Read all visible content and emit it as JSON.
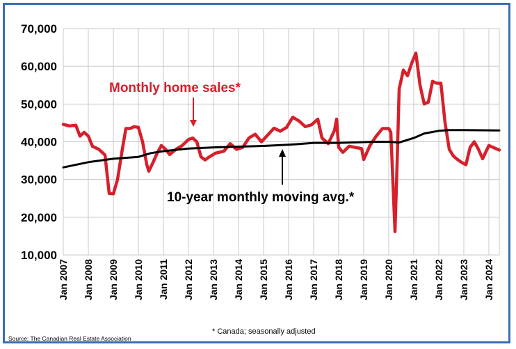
{
  "chart_data": {
    "type": "line",
    "title": "",
    "xlabel": "",
    "ylabel": "",
    "ylim": [
      10000,
      70000
    ],
    "yticks": [
      10000,
      20000,
      30000,
      40000,
      50000,
      60000,
      70000
    ],
    "ytick_labels": [
      "10,000",
      "20,000",
      "30,000",
      "40,000",
      "50,000",
      "60,000",
      "70,000"
    ],
    "xlim": [
      "2007-01",
      "2024-06"
    ],
    "xtick_labels": [
      "Jan 2007",
      "Jan 2008",
      "Jan 2009",
      "Jan 2010",
      "Jan 2011",
      "Jan 2012",
      "Jan 2013",
      "Jan 2014",
      "Jan 2015",
      "Jan 2016",
      "Jan 2017",
      "Jan 2018",
      "Jan 2019",
      "Jan 2020",
      "Jan 2021",
      "Jan 2022",
      "Jan 2023",
      "Jan 2024"
    ],
    "grid": true,
    "series": [
      {
        "name": "Monthly home sales*",
        "color": "#d6202b",
        "points": [
          [
            "2007-01",
            44600
          ],
          [
            "2007-04",
            44200
          ],
          [
            "2007-07",
            44400
          ],
          [
            "2007-09",
            41500
          ],
          [
            "2007-11",
            42500
          ],
          [
            "2008-01",
            41500
          ],
          [
            "2008-03",
            38800
          ],
          [
            "2008-06",
            38000
          ],
          [
            "2008-09",
            36500
          ],
          [
            "2008-11",
            26300
          ],
          [
            "2009-01",
            26200
          ],
          [
            "2009-03",
            30000
          ],
          [
            "2009-05",
            37000
          ],
          [
            "2009-07",
            43500
          ],
          [
            "2009-09",
            43500
          ],
          [
            "2009-11",
            44000
          ],
          [
            "2010-01",
            43800
          ],
          [
            "2010-03",
            40000
          ],
          [
            "2010-05",
            34000
          ],
          [
            "2010-06",
            32200
          ],
          [
            "2010-08",
            34500
          ],
          [
            "2010-10",
            37000
          ],
          [
            "2010-12",
            39000
          ],
          [
            "2011-02",
            38000
          ],
          [
            "2011-04",
            36600
          ],
          [
            "2011-07",
            38000
          ],
          [
            "2011-10",
            39000
          ],
          [
            "2012-01",
            40600
          ],
          [
            "2012-03",
            41000
          ],
          [
            "2012-05",
            40000
          ],
          [
            "2012-07",
            36000
          ],
          [
            "2012-09",
            35200
          ],
          [
            "2012-11",
            36000
          ],
          [
            "2013-02",
            37000
          ],
          [
            "2013-06",
            37500
          ],
          [
            "2013-09",
            39500
          ],
          [
            "2013-12",
            38000
          ],
          [
            "2014-03",
            38500
          ],
          [
            "2014-06",
            41000
          ],
          [
            "2014-09",
            42000
          ],
          [
            "2014-12",
            40000
          ],
          [
            "2015-03",
            41800
          ],
          [
            "2015-06",
            43600
          ],
          [
            "2015-09",
            42800
          ],
          [
            "2015-12",
            43800
          ],
          [
            "2016-03",
            46500
          ],
          [
            "2016-06",
            45500
          ],
          [
            "2016-09",
            44000
          ],
          [
            "2016-12",
            44500
          ],
          [
            "2017-03",
            46000
          ],
          [
            "2017-05",
            41000
          ],
          [
            "2017-08",
            39500
          ],
          [
            "2017-11",
            43000
          ],
          [
            "2017-12",
            46000
          ],
          [
            "2018-01",
            38500
          ],
          [
            "2018-03",
            37200
          ],
          [
            "2018-06",
            38800
          ],
          [
            "2018-09",
            38500
          ],
          [
            "2018-12",
            38200
          ],
          [
            "2019-01",
            35300
          ],
          [
            "2019-04",
            39000
          ],
          [
            "2019-07",
            41500
          ],
          [
            "2019-10",
            43500
          ],
          [
            "2020-01",
            43500
          ],
          [
            "2020-02",
            42500
          ],
          [
            "2020-04",
            16200
          ],
          [
            "2020-05",
            34000
          ],
          [
            "2020-06",
            54000
          ],
          [
            "2020-08",
            59000
          ],
          [
            "2020-10",
            57500
          ],
          [
            "2020-12",
            60800
          ],
          [
            "2021-02",
            63500
          ],
          [
            "2021-04",
            55000
          ],
          [
            "2021-06",
            50000
          ],
          [
            "2021-08",
            50500
          ],
          [
            "2021-10",
            56000
          ],
          [
            "2021-12",
            55500
          ],
          [
            "2022-02",
            55500
          ],
          [
            "2022-04",
            45000
          ],
          [
            "2022-06",
            38000
          ],
          [
            "2022-08",
            36200
          ],
          [
            "2022-10",
            35300
          ],
          [
            "2022-12",
            34500
          ],
          [
            "2023-02",
            33900
          ],
          [
            "2023-04",
            38500
          ],
          [
            "2023-06",
            40000
          ],
          [
            "2023-08",
            38000
          ],
          [
            "2023-10",
            35500
          ],
          [
            "2024-01",
            39000
          ],
          [
            "2024-06",
            37800
          ]
        ]
      },
      {
        "name": "10-year monthly moving avg.*",
        "color": "#000000",
        "points": [
          [
            "2007-01",
            33200
          ],
          [
            "2008-01",
            34600
          ],
          [
            "2009-01",
            35500
          ],
          [
            "2010-01",
            36000
          ],
          [
            "2010-07",
            37000
          ],
          [
            "2011-01",
            37500
          ],
          [
            "2012-01",
            38200
          ],
          [
            "2013-01",
            38500
          ],
          [
            "2014-01",
            38700
          ],
          [
            "2015-01",
            38900
          ],
          [
            "2016-01",
            39200
          ],
          [
            "2016-06",
            39400
          ],
          [
            "2017-01",
            39700
          ],
          [
            "2018-01",
            39700
          ],
          [
            "2019-01",
            39900
          ],
          [
            "2019-06",
            40000
          ],
          [
            "2020-01",
            40000
          ],
          [
            "2020-06",
            39800
          ],
          [
            "2021-01",
            41000
          ],
          [
            "2021-06",
            42200
          ],
          [
            "2022-01",
            42900
          ],
          [
            "2022-06",
            43100
          ],
          [
            "2023-01",
            43100
          ],
          [
            "2024-06",
            43000
          ]
        ]
      }
    ],
    "annotations": {
      "sales_label": "Monthly home sales*",
      "avg_label": "10-year monthly moving avg.*"
    }
  },
  "footnote": "* Canada; seasonally adjusted",
  "source": "Source: The Canadian Real Estate Association"
}
